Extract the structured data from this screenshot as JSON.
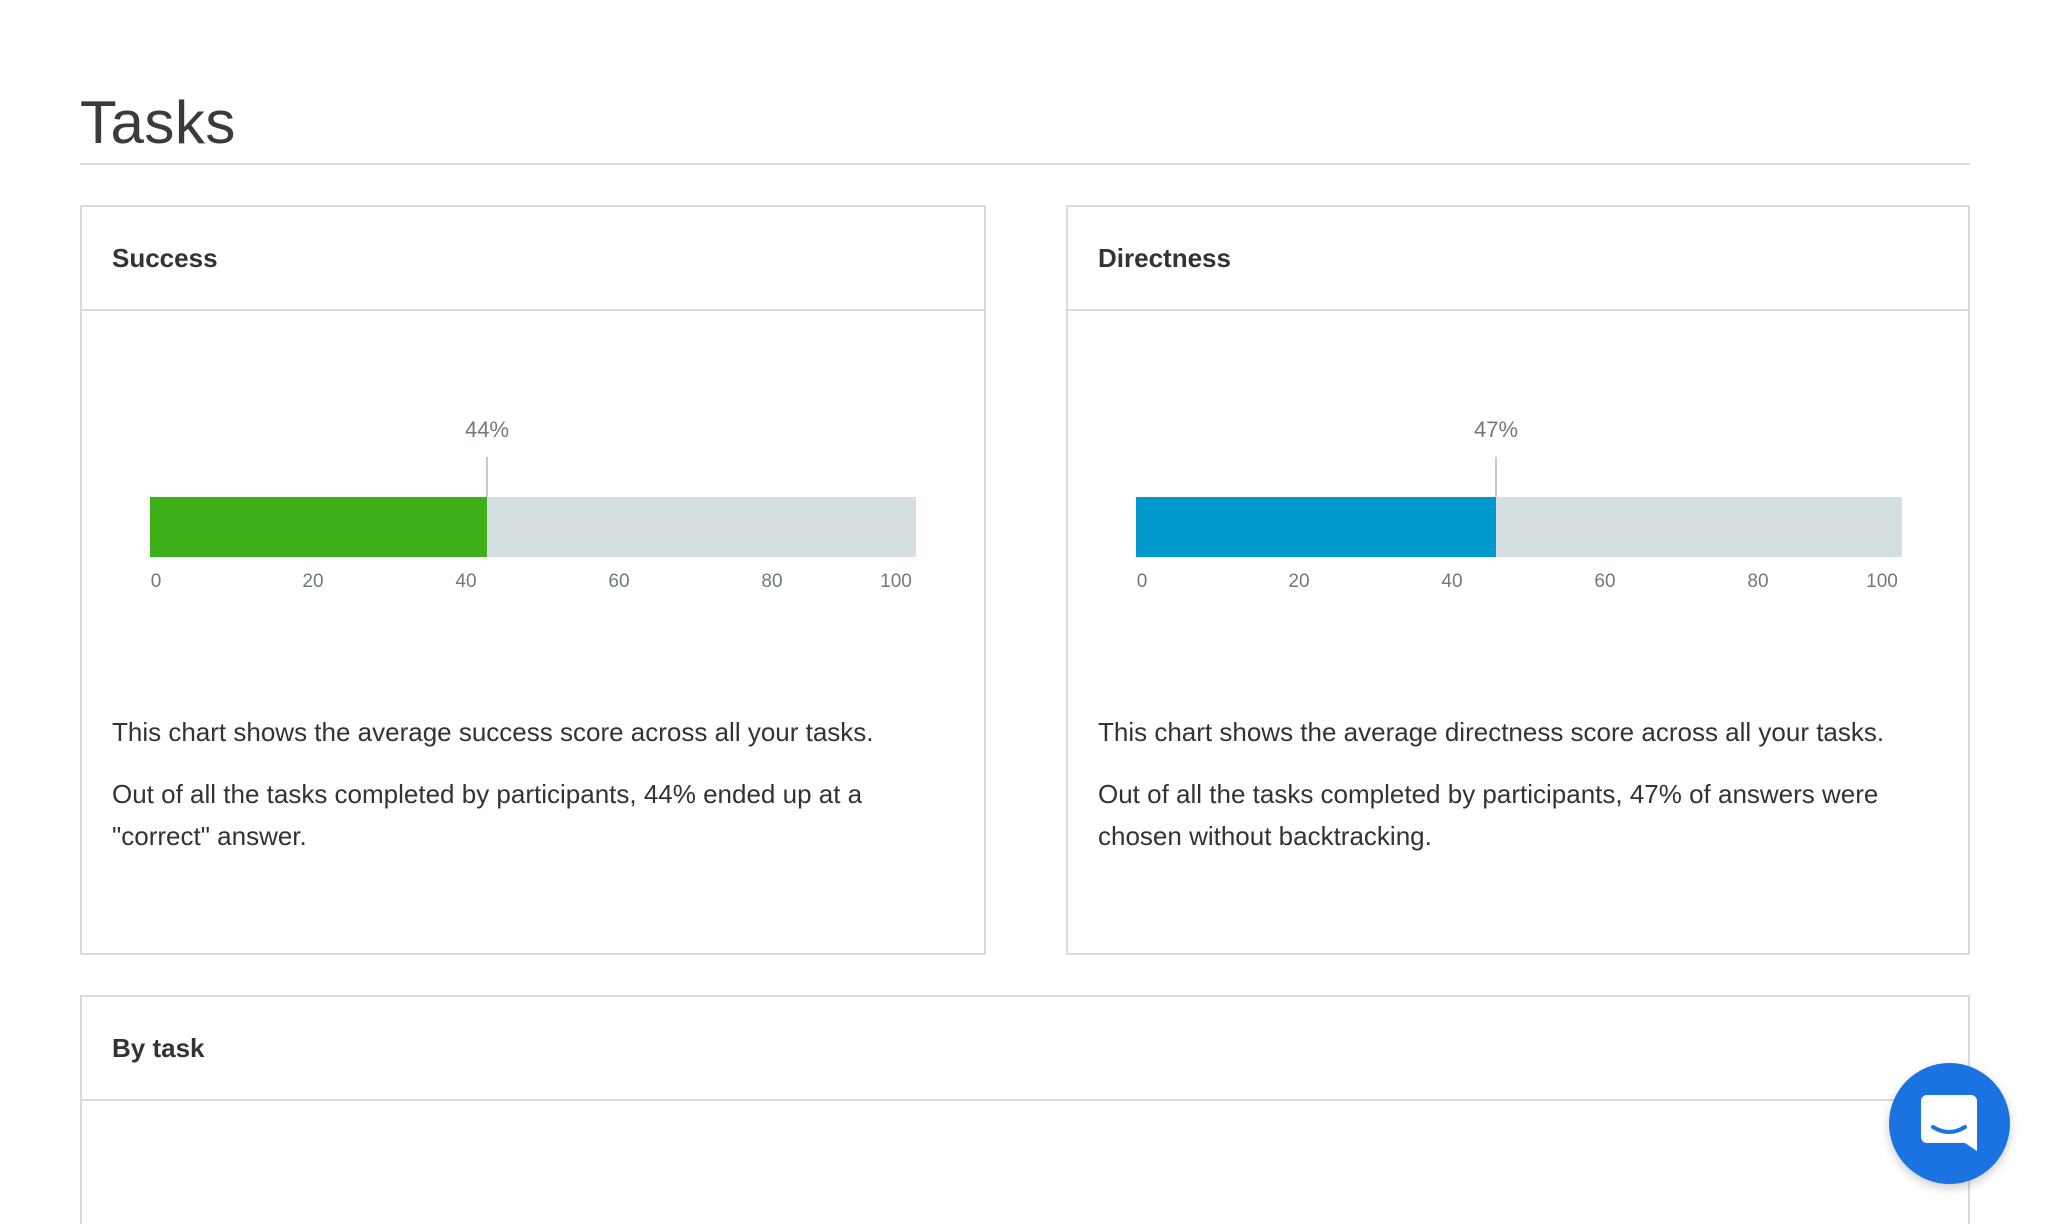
{
  "page": {
    "title": "Tasks"
  },
  "success": {
    "title": "Success",
    "value_label": "44%",
    "value": 44,
    "color": "#3caf19",
    "ticks": [
      "0",
      "20",
      "40",
      "60",
      "80",
      "100"
    ],
    "description": "This chart shows the average success score across all your tasks.",
    "detail": "Out of all the tasks completed by participants, 44% ended up at a \"correct\" answer."
  },
  "directness": {
    "title": "Directness",
    "value_label": "47%",
    "value": 47,
    "color": "#0099cc",
    "ticks": [
      "0",
      "20",
      "40",
      "60",
      "80",
      "100"
    ],
    "description": "This chart shows the average directness score across all your tasks.",
    "detail": "Out of all the tasks completed by participants, 47% of answers were chosen without backtracking."
  },
  "by_task": {
    "title": "By task"
  },
  "chat": {
    "icon": "chat-bubble-icon",
    "color": "#1a73e0"
  }
}
